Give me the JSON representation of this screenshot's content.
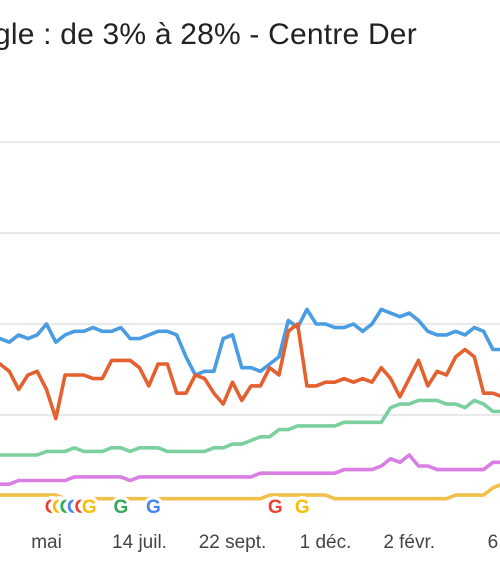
{
  "chart_data": {
    "type": "line",
    "title": "gle : de 3% à 28%  - Centre Der",
    "xlabel": "",
    "ylabel": "",
    "x_ticks": [
      {
        "label": "mai",
        "index": 5
      },
      {
        "label": "14 juil.",
        "index": 15
      },
      {
        "label": "22 sept.",
        "index": 25
      },
      {
        "label": "1 déc.",
        "index": 35
      },
      {
        "label": "2 févr.",
        "index": 44
      },
      {
        "label": "6",
        "index": 53
      }
    ],
    "ylim": [
      0,
      100
    ],
    "gridlines": [
      25,
      50,
      75,
      100
    ],
    "grid": true,
    "legend": "none",
    "point_count": 55,
    "series": [
      {
        "color": "#4a9de2",
        "values": [
          46,
          45,
          47,
          46,
          47,
          50,
          45,
          47,
          48,
          48,
          49,
          48,
          48,
          49,
          46,
          46,
          47,
          48,
          48,
          47,
          41,
          36,
          37,
          37,
          46,
          47,
          38,
          38,
          37,
          39,
          41,
          51,
          49,
          54,
          50,
          50,
          49,
          49,
          50,
          48,
          50,
          54,
          53,
          52,
          53,
          51,
          48,
          47,
          47,
          48,
          47,
          49,
          48,
          43,
          43
        ]
      },
      {
        "color": "#e4612f",
        "values": [
          39,
          37,
          32,
          36,
          37,
          32,
          24,
          36,
          36,
          36,
          35,
          35,
          40,
          40,
          40,
          38,
          33,
          39,
          39,
          31,
          31,
          36,
          35,
          31,
          28,
          34,
          29,
          33,
          33,
          38,
          36,
          48,
          50,
          33,
          33,
          34,
          34,
          35,
          34,
          35,
          34,
          38,
          35,
          30,
          35,
          40,
          33,
          37,
          36,
          41,
          43,
          41,
          31,
          31,
          30
        ]
      },
      {
        "color": "#7ccf9e",
        "values": [
          14,
          14,
          14,
          14,
          14,
          15,
          15,
          15,
          16,
          15,
          15,
          15,
          16,
          16,
          15,
          16,
          16,
          16,
          15,
          15,
          15,
          15,
          15,
          16,
          16,
          17,
          17,
          18,
          19,
          19,
          21,
          21,
          22,
          22,
          22,
          22,
          22,
          23,
          23,
          23,
          23,
          23,
          27,
          28,
          28,
          29,
          29,
          29,
          28,
          28,
          27,
          29,
          28,
          26,
          26
        ]
      },
      {
        "color": "#d97ee3",
        "values": [
          6,
          6,
          7,
          7,
          7,
          7,
          7,
          7,
          8,
          8,
          8,
          8,
          8,
          8,
          7,
          8,
          8,
          8,
          8,
          8,
          8,
          8,
          8,
          8,
          8,
          8,
          8,
          8,
          9,
          9,
          9,
          9,
          9,
          9,
          9,
          9,
          9,
          10,
          10,
          10,
          10,
          11,
          13,
          12,
          14,
          11,
          11,
          10,
          10,
          10,
          10,
          10,
          10,
          12,
          12
        ]
      },
      {
        "color": "#f0c04a",
        "values": [
          3,
          3,
          3,
          3,
          3,
          3,
          3,
          2,
          2,
          2,
          2,
          2,
          2,
          2,
          2,
          2,
          2,
          2,
          2,
          2,
          2,
          2,
          2,
          2,
          2,
          2,
          2,
          2,
          2,
          3,
          3,
          3,
          3,
          3,
          3,
          3,
          2,
          2,
          2,
          2,
          2,
          2,
          2,
          2,
          2,
          2,
          2,
          2,
          2,
          3,
          3,
          3,
          3,
          5,
          6
        ]
      }
    ],
    "event_markers": [
      {
        "label": "G",
        "index": 5.6
      },
      {
        "label": "G",
        "index": 6.4
      },
      {
        "label": "G",
        "index": 7.2
      },
      {
        "label": "G",
        "index": 8.0
      },
      {
        "label": "G",
        "index": 8.8
      },
      {
        "label": "G",
        "index": 9.6
      },
      {
        "label": "G",
        "index": 13.0
      },
      {
        "label": "G",
        "index": 16.5
      },
      {
        "label": "G",
        "index": 29.6
      },
      {
        "label": "G",
        "index": 32.5
      }
    ],
    "marker_colors": [
      "#ea4335",
      "#fbbc05",
      "#34a853",
      "#4285f4"
    ]
  }
}
